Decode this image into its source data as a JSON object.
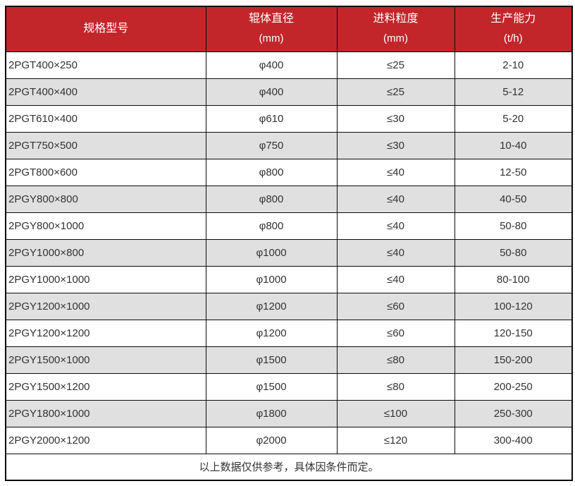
{
  "colors": {
    "header_bg": "#C2262B",
    "header_text": "#FFFFFF",
    "row_bg": "#FFFFFF",
    "row_alt_bg": "#E0E0E0",
    "border": "#0A0A0A",
    "text": "#333333"
  },
  "table": {
    "columns": [
      {
        "title": "规格型号",
        "unit": ""
      },
      {
        "title": "辊体直径",
        "unit": "(mm)"
      },
      {
        "title": "进料粒度",
        "unit": "(mm)"
      },
      {
        "title": "生产能力",
        "unit": "(t/h)"
      }
    ],
    "rows": [
      {
        "model": "2PGT400×250",
        "roller_diameter": "φ400",
        "feed_size": "≤25",
        "capacity": "2-10"
      },
      {
        "model": "2PGT400×400",
        "roller_diameter": "φ400",
        "feed_size": "≤25",
        "capacity": "5-12"
      },
      {
        "model": "2PGT610×400",
        "roller_diameter": "φ610",
        "feed_size": "≤30",
        "capacity": "5-20"
      },
      {
        "model": "2PGT750×500",
        "roller_diameter": "φ750",
        "feed_size": "≤30",
        "capacity": "10-40"
      },
      {
        "model": "2PGT800×600",
        "roller_diameter": "φ800",
        "feed_size": "≤40",
        "capacity": "12-50"
      },
      {
        "model": "2PGY800×800",
        "roller_diameter": "φ800",
        "feed_size": "≤40",
        "capacity": "40-50"
      },
      {
        "model": "2PGY800×1000",
        "roller_diameter": "φ800",
        "feed_size": "≤40",
        "capacity": "50-80"
      },
      {
        "model": "2PGY1000×800",
        "roller_diameter": "φ1000",
        "feed_size": "≤40",
        "capacity": "50-80"
      },
      {
        "model": "2PGY1000×1000",
        "roller_diameter": "φ1000",
        "feed_size": "≤40",
        "capacity": "80-100"
      },
      {
        "model": "2PGY1200×1000",
        "roller_diameter": "φ1200",
        "feed_size": "≤60",
        "capacity": "100-120"
      },
      {
        "model": "2PGY1200×1200",
        "roller_diameter": "φ1200",
        "feed_size": "≤60",
        "capacity": "120-150"
      },
      {
        "model": "2PGY1500×1000",
        "roller_diameter": "φ1500",
        "feed_size": "≤80",
        "capacity": "150-200"
      },
      {
        "model": "2PGY1500×1200",
        "roller_diameter": "φ1500",
        "feed_size": "≤80",
        "capacity": "200-250"
      },
      {
        "model": "2PGY1800×1000",
        "roller_diameter": "φ1800",
        "feed_size": "≤100",
        "capacity": "250-300"
      },
      {
        "model": "2PGY2000×1200",
        "roller_diameter": "φ2000",
        "feed_size": "≤120",
        "capacity": "300-400"
      }
    ],
    "footnote": "以上数据仅供参考，具体因条件而定。"
  },
  "chart_data": {
    "type": "table",
    "title": "",
    "columns": [
      "规格型号",
      "辊体直径 (mm)",
      "进料粒度 (mm)",
      "生产能力 (t/h)"
    ],
    "rows": [
      [
        "2PGT400×250",
        "φ400",
        "≤25",
        "2-10"
      ],
      [
        "2PGT400×400",
        "φ400",
        "≤25",
        "5-12"
      ],
      [
        "2PGT610×400",
        "φ610",
        "≤30",
        "5-20"
      ],
      [
        "2PGT750×500",
        "φ750",
        "≤30",
        "10-40"
      ],
      [
        "2PGT800×600",
        "φ800",
        "≤40",
        "12-50"
      ],
      [
        "2PGY800×800",
        "φ800",
        "≤40",
        "40-50"
      ],
      [
        "2PGY800×1000",
        "φ800",
        "≤40",
        "50-80"
      ],
      [
        "2PGY1000×800",
        "φ1000",
        "≤40",
        "50-80"
      ],
      [
        "2PGY1000×1000",
        "φ1000",
        "≤40",
        "80-100"
      ],
      [
        "2PGY1200×1000",
        "φ1200",
        "≤60",
        "100-120"
      ],
      [
        "2PGY1200×1200",
        "φ1200",
        "≤60",
        "120-150"
      ],
      [
        "2PGY1500×1000",
        "φ1500",
        "≤80",
        "150-200"
      ],
      [
        "2PGY1500×1200",
        "φ1500",
        "≤80",
        "200-250"
      ],
      [
        "2PGY1800×1000",
        "φ1800",
        "≤100",
        "250-300"
      ],
      [
        "2PGY2000×1200",
        "φ2000",
        "≤120",
        "300-400"
      ]
    ],
    "footnote": "以上数据仅供参考，具体因条件而定。"
  }
}
